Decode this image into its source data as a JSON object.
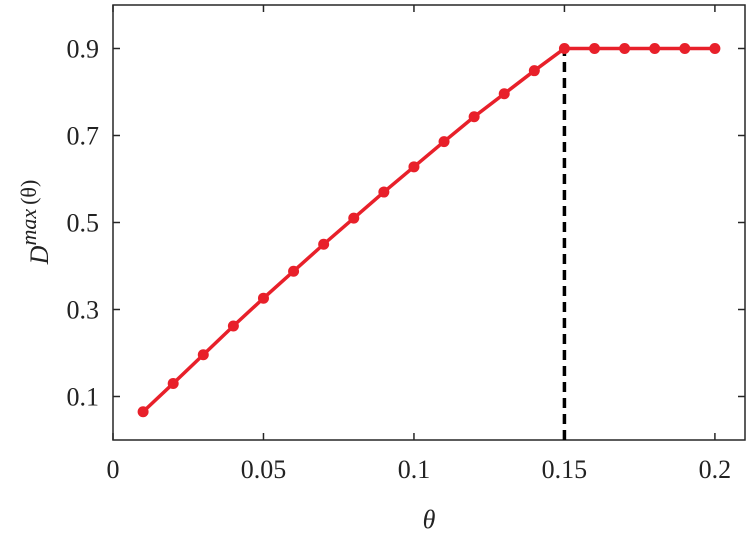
{
  "chart_data": {
    "type": "line",
    "x": [
      0.01,
      0.02,
      0.03,
      0.04,
      0.05,
      0.06,
      0.07,
      0.08,
      0.09,
      0.1,
      0.11,
      0.12,
      0.13,
      0.14,
      0.15,
      0.16,
      0.17,
      0.18,
      0.19,
      0.2
    ],
    "series": [
      {
        "color": "#e8202a",
        "values": [
          0.065,
          0.13,
          0.196,
          0.262,
          0.326,
          0.388,
          0.45,
          0.51,
          0.57,
          0.628,
          0.686,
          0.743,
          0.796,
          0.849,
          0.9,
          0.9,
          0.9,
          0.9,
          0.9,
          0.9
        ]
      }
    ],
    "reference_line": {
      "x": 0.15,
      "y": 0.9,
      "color": "#000000"
    },
    "xlabel": "θ",
    "ylabel": {
      "base": "D",
      "sup": "max",
      "arg": "(θ)"
    },
    "xlim": [
      0,
      0.21
    ],
    "ylim": [
      0,
      1
    ],
    "xticks": [
      0,
      0.05,
      0.1,
      0.15,
      0.2
    ],
    "yticks": [
      0.1,
      0.3,
      0.5,
      0.7,
      0.9
    ],
    "grid": false
  }
}
